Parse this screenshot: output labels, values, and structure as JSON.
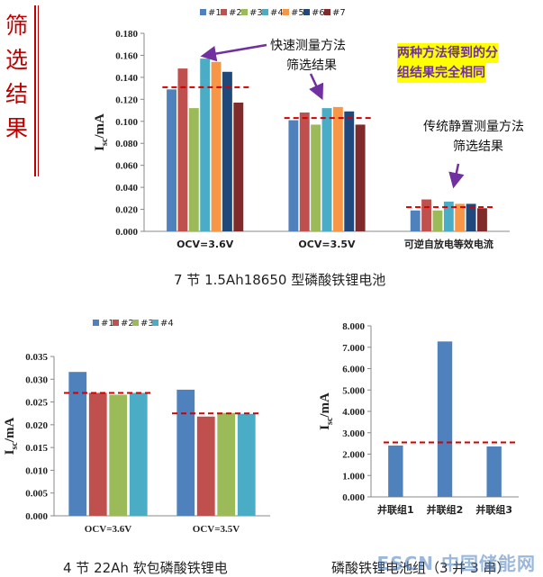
{
  "side_title": [
    "筛",
    "选",
    "结",
    "果"
  ],
  "notes": {
    "fast_line1": "快速测量方法",
    "fast_line2": "筛选结果",
    "traditional_line1": "传统静置测量方法",
    "traditional_line2": "筛选结果",
    "same_line1": "两种方法得到的分",
    "same_line2": "组结果完全相同"
  },
  "captions": {
    "chart1": "7 节 1.5Ah18650 型磷酸铁锂电池",
    "chart2": "4 节 22Ah 软包磷酸铁锂电",
    "chart3": "磷酸铁锂电池组（3 并 3 串）"
  },
  "watermark": "ESCN 中国储能网",
  "colors": {
    "s1": "#4f81bd",
    "s2": "#c0504d",
    "s3": "#9bbb59",
    "s4": "#4bacc6",
    "s5": "#f79646",
    "s6": "#1f497d",
    "s7": "#7f2b2b",
    "dashed": "#d00000",
    "arrow": "#7030a0"
  },
  "chart_data": [
    {
      "type": "bar",
      "ylabel": "Isc/mA",
      "ylim": [
        0,
        0.18
      ],
      "yticks": [
        "0.000",
        "0.020",
        "0.040",
        "0.060",
        "0.080",
        "0.100",
        "0.120",
        "0.140",
        "0.160",
        "0.180"
      ],
      "categories": [
        "OCV=3.6V",
        "OCV=3.5V",
        "可逆自放电等效电流"
      ],
      "legend_position": "top",
      "series": [
        {
          "name": "#1",
          "values": [
            0.129,
            0.101,
            0.019
          ]
        },
        {
          "name": "#2",
          "values": [
            0.148,
            0.108,
            0.029
          ]
        },
        {
          "name": "#3",
          "values": [
            0.112,
            0.097,
            0.019
          ]
        },
        {
          "name": "#4",
          "values": [
            0.157,
            0.112,
            0.027
          ]
        },
        {
          "name": "#5",
          "values": [
            0.154,
            0.113,
            0.025
          ]
        },
        {
          "name": "#6",
          "values": [
            0.145,
            0.109,
            0.025
          ]
        },
        {
          "name": "#7",
          "values": [
            0.117,
            0.097,
            0.021
          ]
        }
      ],
      "reference_lines": [
        0.131,
        0.103,
        0.022
      ]
    },
    {
      "type": "bar",
      "ylabel": "Isc/mA",
      "ylim": [
        0,
        0.035
      ],
      "yticks": [
        "0.000",
        "0.005",
        "0.010",
        "0.015",
        "0.020",
        "0.025",
        "0.030",
        "0.035"
      ],
      "categories": [
        "OCV=3.6V",
        "OCV=3.5V"
      ],
      "legend_position": "top",
      "series": [
        {
          "name": "#1",
          "values": [
            0.0316,
            0.0277
          ]
        },
        {
          "name": "#2",
          "values": [
            0.027,
            0.0218
          ]
        },
        {
          "name": "#3",
          "values": [
            0.0266,
            0.0226
          ]
        },
        {
          "name": "#4",
          "values": [
            0.027,
            0.0224
          ]
        }
      ],
      "reference_lines": [
        0.027,
        0.0225
      ]
    },
    {
      "type": "bar",
      "ylabel": "Isc/mA",
      "ylim": [
        0,
        8
      ],
      "yticks": [
        "0.000",
        "1.000",
        "2.000",
        "3.000",
        "4.000",
        "5.000",
        "6.000",
        "7.000",
        "8.000"
      ],
      "categories": [
        "并联组1",
        "并联组2",
        "并联组3"
      ],
      "series": [
        {
          "values": [
            2.4,
            7.27,
            2.36
          ]
        }
      ],
      "reference_lines": [
        2.55
      ]
    }
  ]
}
